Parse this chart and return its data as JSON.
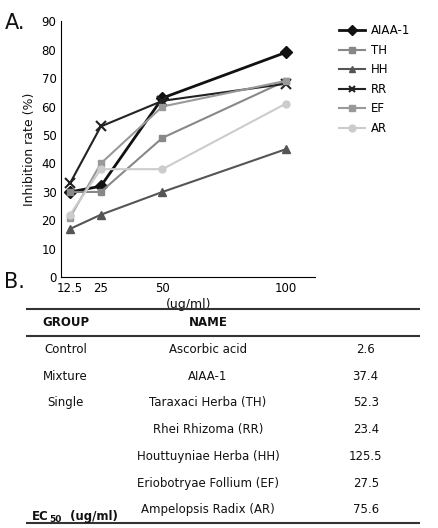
{
  "x": [
    12.5,
    25,
    50,
    100
  ],
  "series_order": [
    "AIAA-1",
    "TH",
    "HH",
    "RR",
    "EF",
    "AR"
  ],
  "series": {
    "AIAA-1": {
      "values": [
        30,
        32,
        63,
        79
      ],
      "color": "#111111",
      "marker": "D",
      "linewidth": 2.0,
      "markersize": 6,
      "markerfacecolor": "#111111"
    },
    "TH": {
      "values": [
        30,
        30,
        49,
        69
      ],
      "color": "#888888",
      "marker": "s",
      "linewidth": 1.5,
      "markersize": 5,
      "markerfacecolor": "#888888"
    },
    "HH": {
      "values": [
        17,
        22,
        30,
        45
      ],
      "color": "#555555",
      "marker": "^",
      "linewidth": 1.5,
      "markersize": 6,
      "markerfacecolor": "#555555"
    },
    "RR": {
      "values": [
        33,
        53,
        62,
        68
      ],
      "color": "#222222",
      "marker": "x",
      "linewidth": 1.5,
      "markersize": 7,
      "markerfacecolor": "#222222"
    },
    "EF": {
      "values": [
        21,
        40,
        60,
        69
      ],
      "color": "#999999",
      "marker": "s",
      "linewidth": 1.5,
      "markersize": 5,
      "markerfacecolor": "#999999"
    },
    "AR": {
      "values": [
        22,
        38,
        38,
        61
      ],
      "color": "#cccccc",
      "marker": "o",
      "linewidth": 1.5,
      "markersize": 5,
      "markerfacecolor": "#cccccc"
    }
  },
  "xlabel": "(ug/ml)",
  "ylabel": "Inhibition rate (%)",
  "ylim": [
    0,
    90
  ],
  "yticks": [
    0,
    10,
    20,
    30,
    40,
    50,
    60,
    70,
    80,
    90
  ],
  "xtick_labels": [
    "12.5",
    "25",
    "50",
    "100"
  ],
  "panel_a_label": "A.",
  "panel_b_label": "B.",
  "table_col_headers": [
    "GROUP",
    "NAME",
    "EC50 (ug/ml)"
  ],
  "table_rows": [
    [
      "Control",
      "Ascorbic acid",
      "2.6"
    ],
    [
      "Mixture",
      "AIAA-1",
      "37.4"
    ],
    [
      "Single",
      "Taraxaci Herba (TH)",
      "52.3"
    ],
    [
      "",
      "Rhei Rhizoma (RR)",
      "23.4"
    ],
    [
      "",
      "Houttuyniae Herba (HH)",
      "125.5"
    ],
    [
      "",
      "Eriobotryae Follium (EF)",
      "27.5"
    ],
    [
      "",
      "Ampelopsis Radix (AR)",
      "75.6"
    ]
  ],
  "bg_color": "#ffffff",
  "font_color": "#111111"
}
